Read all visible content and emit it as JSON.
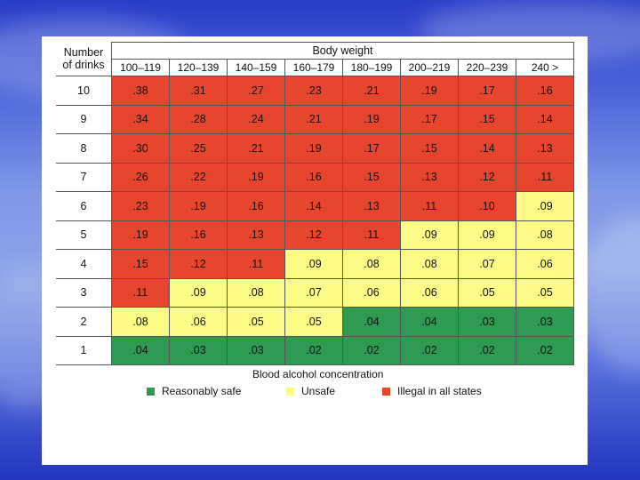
{
  "chart_data": {
    "type": "table",
    "title": "Body weight",
    "row_header": [
      "Number",
      "of drinks"
    ],
    "caption": "Blood alcohol concentration",
    "columns": [
      "100–119",
      "120–139",
      "140–159",
      "160–179",
      "180–199",
      "200–219",
      "220–239",
      "240 >"
    ],
    "rows": [
      {
        "drinks": "10",
        "values": [
          ".38",
          ".31",
          ".27",
          ".23",
          ".21",
          ".19",
          ".17",
          ".16"
        ],
        "status": [
          "r",
          "r",
          "r",
          "r",
          "r",
          "r",
          "r",
          "r"
        ]
      },
      {
        "drinks": "9",
        "values": [
          ".34",
          ".28",
          ".24",
          ".21",
          ".19",
          ".17",
          ".15",
          ".14"
        ],
        "status": [
          "r",
          "r",
          "r",
          "r",
          "r",
          "r",
          "r",
          "r"
        ]
      },
      {
        "drinks": "8",
        "values": [
          ".30",
          ".25",
          ".21",
          ".19",
          ".17",
          ".15",
          ".14",
          ".13"
        ],
        "status": [
          "r",
          "r",
          "r",
          "r",
          "r",
          "r",
          "r",
          "r"
        ]
      },
      {
        "drinks": "7",
        "values": [
          ".26",
          ".22",
          ".19",
          ".16",
          ".15",
          ".13",
          ".12",
          ".11"
        ],
        "status": [
          "r",
          "r",
          "r",
          "r",
          "r",
          "r",
          "r",
          "r"
        ]
      },
      {
        "drinks": "6",
        "values": [
          ".23",
          ".19",
          ".16",
          ".14",
          ".13",
          ".11",
          ".10",
          ".09"
        ],
        "status": [
          "r",
          "r",
          "r",
          "r",
          "r",
          "r",
          "r",
          "y"
        ]
      },
      {
        "drinks": "5",
        "values": [
          ".19",
          ".16",
          ".13",
          ".12",
          ".11",
          ".09",
          ".09",
          ".08"
        ],
        "status": [
          "r",
          "r",
          "r",
          "r",
          "r",
          "y",
          "y",
          "y"
        ]
      },
      {
        "drinks": "4",
        "values": [
          ".15",
          ".12",
          ".11",
          ".09",
          ".08",
          ".08",
          ".07",
          ".06"
        ],
        "status": [
          "r",
          "r",
          "r",
          "y",
          "y",
          "y",
          "y",
          "y"
        ]
      },
      {
        "drinks": "3",
        "values": [
          ".11",
          ".09",
          ".08",
          ".07",
          ".06",
          ".06",
          ".05",
          ".05"
        ],
        "status": [
          "r",
          "y",
          "y",
          "y",
          "y",
          "y",
          "y",
          "y"
        ]
      },
      {
        "drinks": "2",
        "values": [
          ".08",
          ".06",
          ".05",
          ".05",
          ".04",
          ".04",
          ".03",
          ".03"
        ],
        "status": [
          "y",
          "y",
          "y",
          "y",
          "g",
          "g",
          "g",
          "g"
        ]
      },
      {
        "drinks": "1",
        "values": [
          ".04",
          ".03",
          ".03",
          ".02",
          ".02",
          ".02",
          ".02",
          ".02"
        ],
        "status": [
          "g",
          "g",
          "g",
          "g",
          "g",
          "g",
          "g",
          "g"
        ]
      }
    ],
    "legend": [
      {
        "key": "g",
        "label": "Reasonably safe",
        "color": "#2e9a52"
      },
      {
        "key": "y",
        "label": "Unsafe",
        "color": "#fbfb85"
      },
      {
        "key": "r",
        "label": "Illegal in all states",
        "color": "#e8452e"
      }
    ]
  }
}
